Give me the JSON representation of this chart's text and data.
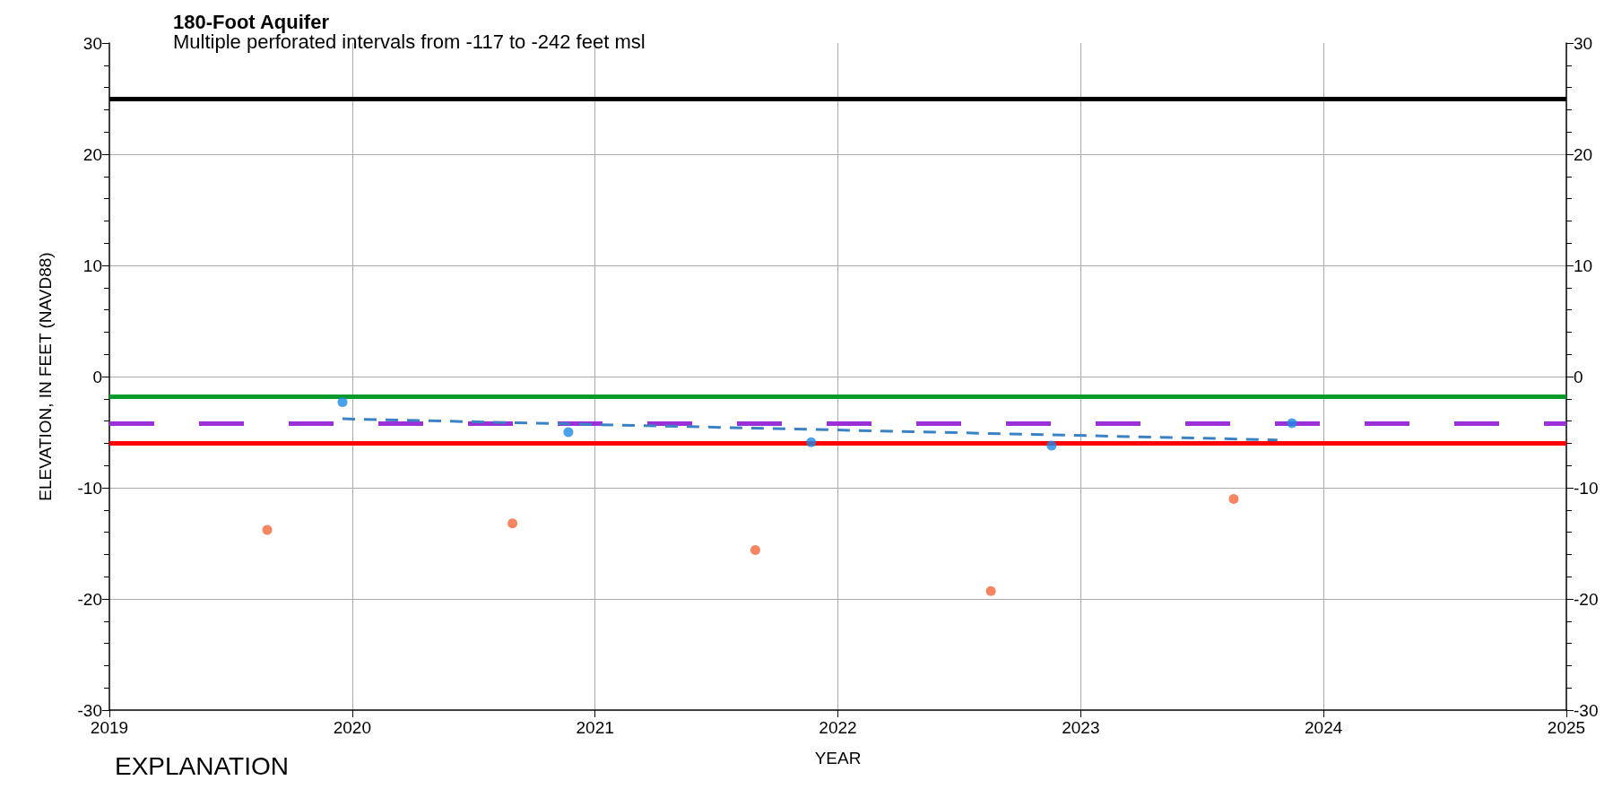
{
  "chart_data": {
    "type": "scatter",
    "title": "180-Foot Aquifer",
    "subtitle": "Multiple perforated intervals from -117 to -242 feet msl",
    "xlabel": "YEAR",
    "ylabel": "ELEVATION, IN FEET (NAVD88)",
    "annotations": [
      "EXPLANATION"
    ],
    "xlim": [
      2019,
      2025
    ],
    "xticks": [
      2019,
      2020,
      2021,
      2022,
      2023,
      2024,
      2025
    ],
    "ylim": [
      -30,
      30
    ],
    "yticks": [
      -30,
      -20,
      -10,
      0,
      10,
      20,
      30
    ],
    "y2lim": [
      -30,
      30
    ],
    "y2ticks": [
      -30,
      -20,
      -10,
      0,
      10,
      20,
      30
    ],
    "grid": true,
    "marker": "circle",
    "series": [
      {
        "color": "#1e88e5",
        "x": [
          2019.96,
          2020.89,
          2021.89,
          2022.88,
          2023.87
        ],
        "values": [
          -2.3,
          -5.0,
          -5.9,
          -6.2,
          -4.2
        ]
      },
      {
        "color": "#f4683a",
        "x": [
          2019.65,
          2020.66,
          2021.66,
          2022.63,
          2023.63
        ],
        "values": [
          -13.8,
          -13.2,
          -15.6,
          -19.3,
          -11.0
        ]
      },
      {
        "type": "line",
        "color": "#3b82c4",
        "line_style": "dashed",
        "marker": "none",
        "x": [
          2019.96,
          2023.81
        ],
        "values": [
          -3.8,
          -5.7
        ]
      }
    ],
    "ref_lines": [
      {
        "axis": "y",
        "value": 25,
        "color": "#000000",
        "line_style": "solid"
      },
      {
        "axis": "y",
        "value": -1.8,
        "color": "#0a9a2a",
        "line_style": "solid"
      },
      {
        "axis": "y",
        "value": -4.2,
        "color": "#9b30d9",
        "line_style": "dashed"
      },
      {
        "axis": "y",
        "value": -6.0,
        "color": "#ff0000",
        "line_style": "solid"
      }
    ]
  }
}
